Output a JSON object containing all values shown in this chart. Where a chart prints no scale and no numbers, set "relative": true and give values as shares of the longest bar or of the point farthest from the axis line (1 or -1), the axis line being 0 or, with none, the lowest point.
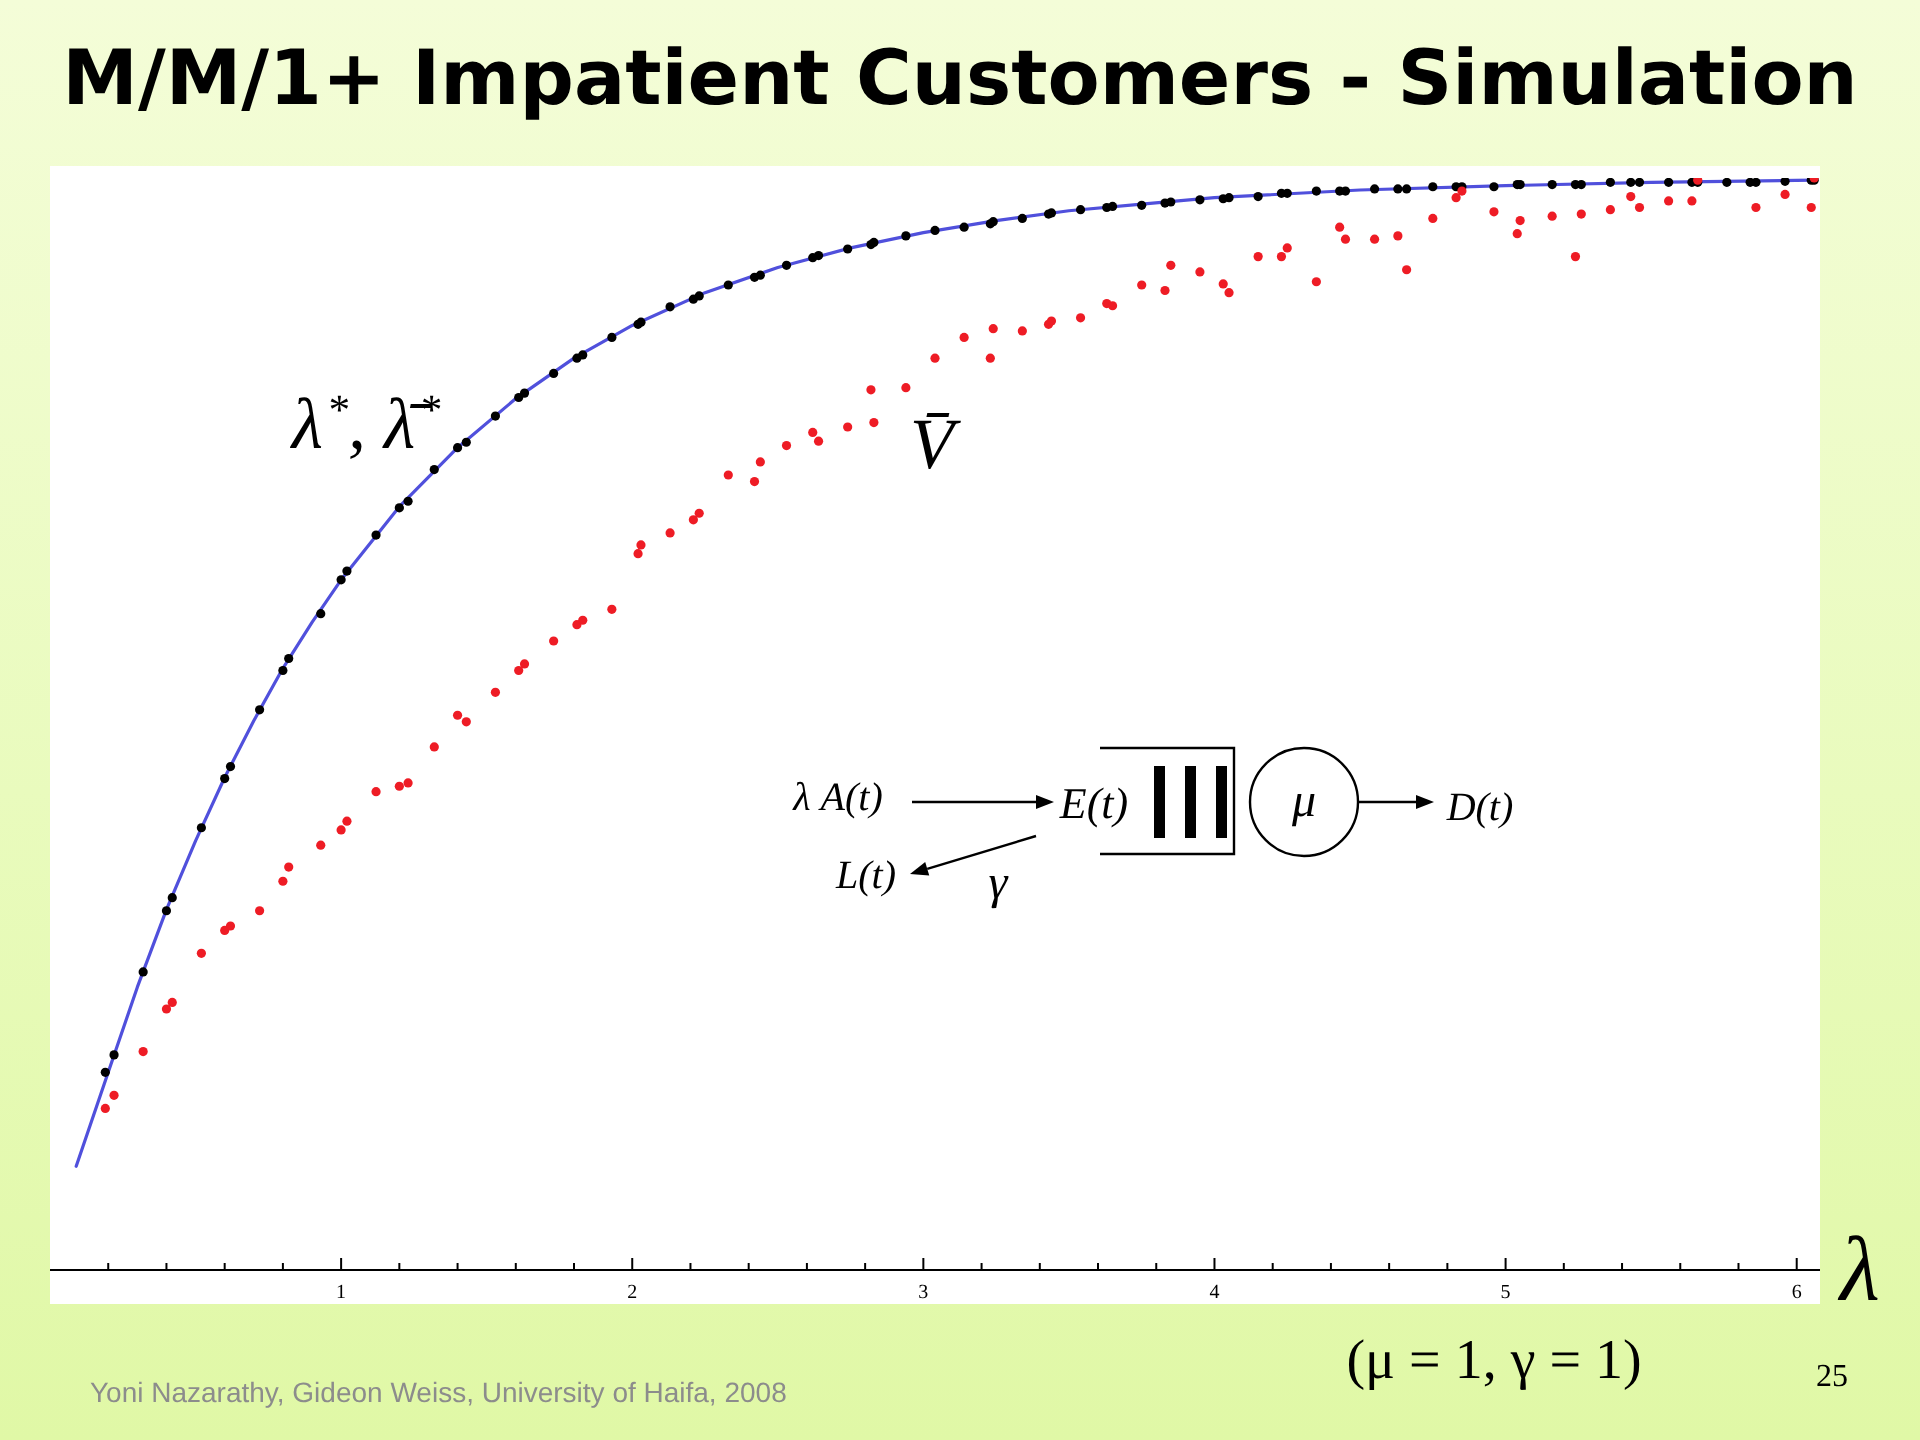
{
  "chart_data": {
    "type": "scatter",
    "title": "M/M/1+ Impatient Customers - Simulation",
    "xlabel": "λ",
    "relative": true,
    "marker": "circle",
    "xlim": [
      0,
      6.08
    ],
    "xticks": [
      {
        "value": 0.2,
        "label": null
      },
      {
        "value": 0.4,
        "label": null
      },
      {
        "value": 0.6,
        "label": null
      },
      {
        "value": 0.8,
        "label": null
      },
      1,
      {
        "value": 1.2,
        "label": null
      },
      {
        "value": 1.4,
        "label": null
      },
      {
        "value": 1.6,
        "label": null
      },
      {
        "value": 1.8,
        "label": null
      },
      2,
      {
        "value": 2.2,
        "label": null
      },
      {
        "value": 2.4,
        "label": null
      },
      {
        "value": 2.6,
        "label": null
      },
      {
        "value": 2.8,
        "label": null
      },
      3,
      {
        "value": 3.2,
        "label": null
      },
      {
        "value": 3.4,
        "label": null
      },
      {
        "value": 3.6,
        "label": null
      },
      {
        "value": 3.8,
        "label": null
      },
      4,
      {
        "value": 4.2,
        "label": null
      },
      {
        "value": 4.4,
        "label": null
      },
      {
        "value": 4.6,
        "label": null
      },
      {
        "value": 4.8,
        "label": null
      },
      5,
      {
        "value": 5.2,
        "label": null
      },
      {
        "value": 5.4,
        "label": null
      },
      {
        "value": 5.6,
        "label": null
      },
      {
        "value": 5.8,
        "label": null
      },
      6
    ],
    "x": [
      0.19,
      0.22,
      0.32,
      0.4,
      0.42,
      0.52,
      0.6,
      0.62,
      0.72,
      0.8,
      0.82,
      0.93,
      1,
      1.02,
      1.12,
      1.2,
      1.23,
      1.32,
      1.4,
      1.43,
      1.53,
      1.61,
      1.63,
      1.73,
      1.81,
      1.83,
      1.93,
      2.02,
      2.03,
      2.13,
      2.21,
      2.23,
      2.33,
      2.42,
      2.44,
      2.53,
      2.62,
      2.64,
      2.74,
      2.82,
      2.83,
      2.94,
      3.04,
      3.14,
      3.23,
      3.24,
      3.34,
      3.43,
      3.44,
      3.54,
      3.63,
      3.65,
      3.75,
      3.83,
      3.85,
      3.95,
      4.03,
      4.05,
      4.15,
      4.23,
      4.25,
      4.35,
      4.43,
      4.45,
      4.55,
      4.63,
      4.66,
      4.75,
      4.83,
      4.85,
      4.96,
      5.04,
      5.05,
      5.16,
      5.24,
      5.26,
      5.36,
      5.43,
      5.46,
      5.56,
      5.64,
      5.66,
      5.76,
      5.84,
      5.86,
      5.96,
      6.05,
      6.06
    ],
    "series": [
      {
        "type": "line",
        "marker": "none",
        "color": "#5050dc",
        "x": [
          0.09,
          0.2,
          0.3,
          0.4,
          0.5,
          0.6,
          0.7,
          0.8,
          0.9,
          1,
          1.2,
          1.4,
          1.6,
          1.8,
          2,
          2.25,
          2.5,
          2.75,
          3,
          3.25,
          3.5,
          3.75,
          4,
          4.5,
          5,
          5.5,
          6.06
        ],
        "values": [
          0.095,
          0.181,
          0.259,
          0.33,
          0.393,
          0.451,
          0.503,
          0.551,
          0.593,
          0.632,
          0.699,
          0.753,
          0.798,
          0.835,
          0.865,
          0.895,
          0.918,
          0.936,
          0.95,
          0.961,
          0.97,
          0.976,
          0.982,
          0.989,
          0.993,
          0.996,
          0.998
        ]
      },
      {
        "color": "#000000",
        "values": [
          0.181,
          0.197,
          0.273,
          0.329,
          0.341,
          0.405,
          0.45,
          0.461,
          0.513,
          0.549,
          0.56,
          0.601,
          0.632,
          0.64,
          0.673,
          0.698,
          0.704,
          0.733,
          0.753,
          0.758,
          0.782,
          0.799,
          0.803,
          0.821,
          0.835,
          0.838,
          0.854,
          0.866,
          0.868,
          0.882,
          0.889,
          0.892,
          0.902,
          0.909,
          0.911,
          0.92,
          0.927,
          0.929,
          0.935,
          0.939,
          0.941,
          0.947,
          0.952,
          0.955,
          0.958,
          0.96,
          0.963,
          0.967,
          0.968,
          0.971,
          0.973,
          0.974,
          0.975,
          0.977,
          0.978,
          0.98,
          0.981,
          0.982,
          0.983,
          0.986,
          0.986,
          0.988,
          0.988,
          0.988,
          0.99,
          0.99,
          0.99,
          0.992,
          0.992,
          0.992,
          0.992,
          0.994,
          0.994,
          0.994,
          0.994,
          0.994,
          0.996,
          0.996,
          0.996,
          0.996,
          0.996,
          0.996,
          0.996,
          0.996,
          0.996,
          0.997,
          0.998,
          0.998
        ]
      },
      {
        "color": "#ee1c25",
        "values": [
          0.148,
          0.16,
          0.2,
          0.239,
          0.245,
          0.29,
          0.311,
          0.315,
          0.329,
          0.356,
          0.369,
          0.389,
          0.403,
          0.411,
          0.438,
          0.443,
          0.446,
          0.479,
          0.508,
          0.502,
          0.529,
          0.549,
          0.555,
          0.576,
          0.591,
          0.595,
          0.605,
          0.656,
          0.664,
          0.675,
          0.687,
          0.693,
          0.728,
          0.722,
          0.74,
          0.755,
          0.767,
          0.759,
          0.772,
          0.806,
          0.776,
          0.808,
          0.835,
          0.854,
          0.835,
          0.862,
          0.86,
          0.866,
          0.869,
          0.872,
          0.885,
          0.883,
          0.902,
          0.897,
          0.92,
          0.914,
          0.903,
          0.895,
          0.928,
          0.928,
          0.936,
          0.905,
          0.955,
          0.944,
          0.944,
          0.947,
          0.916,
          0.963,
          0.982,
          0.988,
          0.969,
          0.949,
          0.961,
          0.965,
          0.928,
          0.967,
          0.971,
          0.983,
          0.973,
          0.979,
          0.979,
          0.998,
          null,
          null,
          0.973,
          0.985,
          0.973,
          1
        ]
      }
    ],
    "annotations": [
      "λ$^{*}$, λ̄$^{*}$",
      "V̄",
      "λ A(t)",
      "E(t)",
      "μ",
      "D(t)",
      "L(t)",
      "γ",
      "(μ = 1, γ = 1)",
      "Yoni Nazarathy, Gideon Weiss, University of Haifa, 2008",
      "25"
    ]
  }
}
